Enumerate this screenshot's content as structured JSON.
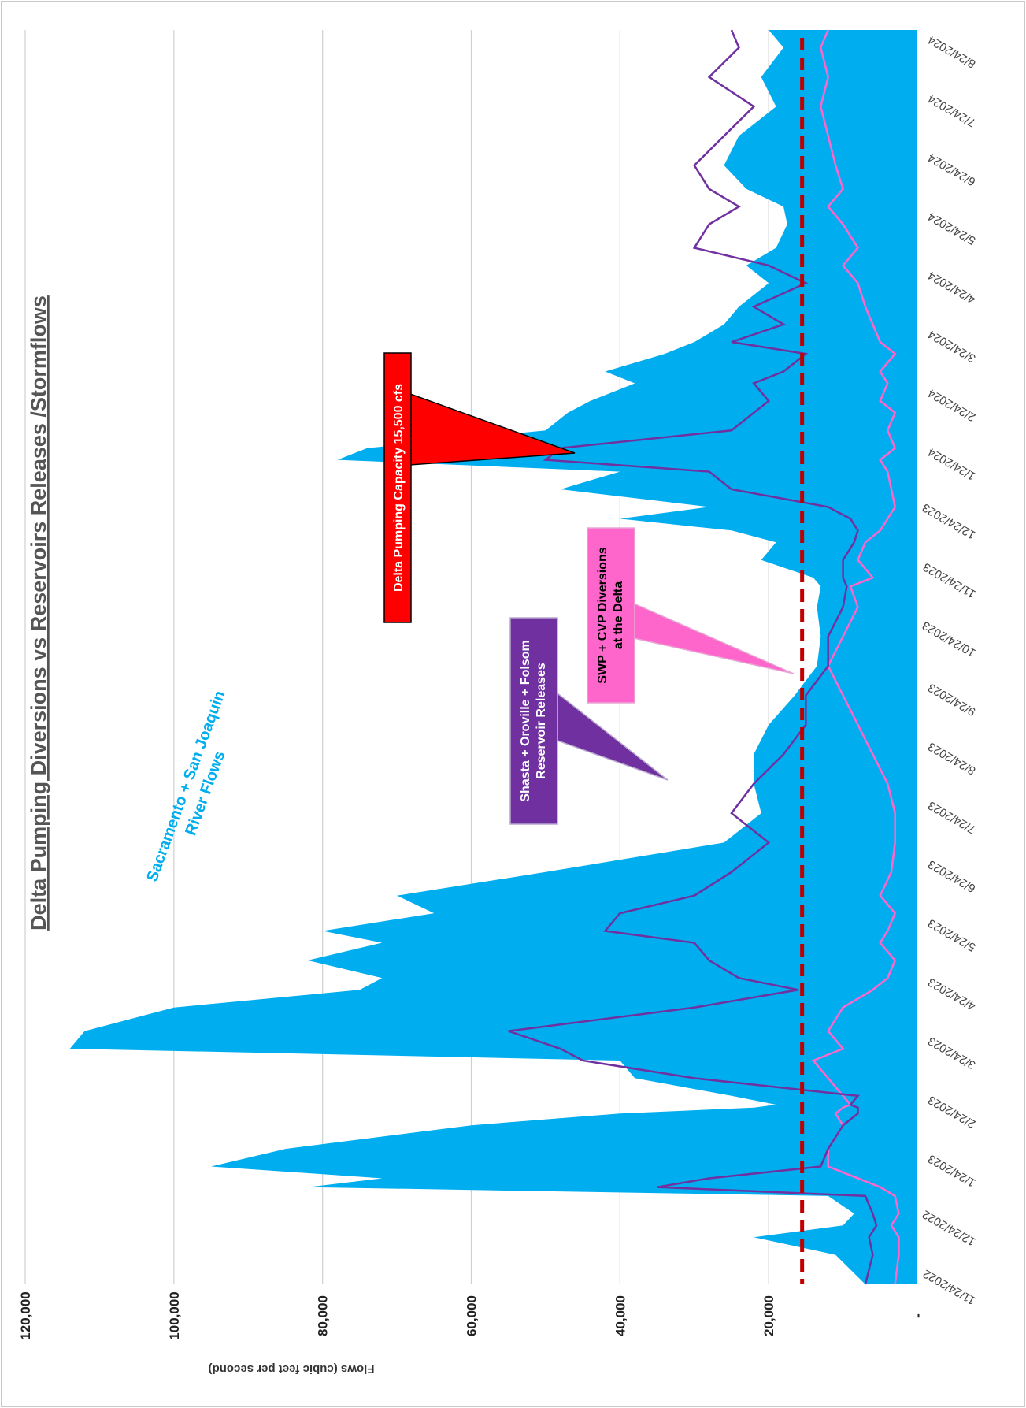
{
  "chart_data": {
    "type": "area",
    "orientation": "rotated 90 degrees clockwise",
    "title": "Delta Pumping Diversions vs Reservoirs Releases /Stormflows",
    "ylabel": "Flows (cubic feet per second)",
    "xlabel": "",
    "ylim": [
      0,
      120000
    ],
    "y_ticks": [
      "-",
      "20,000",
      "40,000",
      "60,000",
      "80,000",
      "100,000",
      "120,000"
    ],
    "x_ticks": [
      "11/24/2022",
      "12/24/2022",
      "1/24/2023",
      "2/24/2023",
      "3/24/2023",
      "4/24/2023",
      "5/24/2023",
      "6/24/2023",
      "7/24/2023",
      "8/24/2023",
      "9/24/2023",
      "10/24/2023",
      "11/24/2023",
      "12/24/2023",
      "1/24/2024",
      "2/24/2024",
      "3/24/2024",
      "4/24/2024",
      "5/24/2024",
      "6/24/2024",
      "7/24/2024",
      "8/24/2024"
    ],
    "grid": true,
    "x_months": [
      0,
      0.5,
      0.8,
      1.0,
      1.2,
      1.5,
      1.65,
      1.8,
      2.0,
      2.3,
      2.7,
      2.9,
      3.0,
      3.05,
      3.2,
      3.5,
      3.8,
      4.0,
      4.3,
      4.7,
      5.0,
      5.2,
      5.5,
      5.8,
      6.0,
      6.3,
      6.6,
      7.0,
      7.5,
      8.0,
      8.5,
      9.0,
      9.5,
      10.0,
      10.5,
      11.0,
      11.5,
      11.85,
      12.0,
      12.3,
      12.6,
      12.8,
      13.0,
      13.2,
      13.5,
      13.8,
      14.0,
      14.2,
      14.5,
      14.8,
      15.0,
      15.3,
      15.5,
      15.8,
      16.0,
      16.3,
      16.6,
      17.0,
      17.3,
      17.6,
      18.0,
      18.3,
      18.6,
      19.0,
      19.5,
      20.0,
      20.5,
      21.0,
      21.3
    ],
    "series": [
      {
        "name": "Sacramento + San Joaquin River Flows",
        "color": "#00aeef",
        "values": [
          7000,
          11000,
          22000,
          10000,
          8500,
          12000,
          82000,
          72000,
          95000,
          85000,
          60000,
          40000,
          22000,
          19000,
          25000,
          38000,
          40000,
          114000,
          112000,
          100000,
          75000,
          72000,
          82000,
          72000,
          80000,
          65000,
          70000,
          50000,
          26000,
          21000,
          22000,
          22000,
          20000,
          16500,
          13500,
          13000,
          13500,
          13000,
          14000,
          21000,
          19000,
          25000,
          40000,
          28000,
          48000,
          40000,
          78000,
          74000,
          50000,
          47000,
          44000,
          38000,
          42000,
          34000,
          30000,
          26000,
          24000,
          20000,
          23000,
          19000,
          17500,
          18000,
          23000,
          26000,
          24000,
          19000,
          21000,
          18000,
          20000
        ]
      },
      {
        "name": "Shasta + Oroville + Folsom Reservoir Releases",
        "color": "#7030a0",
        "values": [
          7000,
          6000,
          6500,
          5500,
          6000,
          7000,
          35000,
          28000,
          13000,
          12000,
          10000,
          8000,
          8000,
          9000,
          8000,
          30000,
          45000,
          48000,
          55000,
          30000,
          16000,
          24000,
          28000,
          30000,
          42000,
          40000,
          30000,
          25000,
          20000,
          25000,
          22000,
          18000,
          15000,
          15000,
          12000,
          12000,
          10000,
          9500,
          10000,
          10000,
          8500,
          8000,
          9000,
          12000,
          25000,
          28000,
          50000,
          48000,
          25000,
          22000,
          20000,
          22000,
          18000,
          15000,
          25000,
          18000,
          22000,
          15000,
          20000,
          30000,
          28000,
          24000,
          28000,
          30000,
          26000,
          22000,
          28000,
          24000,
          25000
        ]
      },
      {
        "name": "SWP + CVP Diversions at the Delta",
        "color": "#ff66cc",
        "values": [
          3000,
          2500,
          2500,
          3500,
          2500,
          3000,
          5000,
          8000,
          12000,
          12000,
          10000,
          11000,
          10000,
          9000,
          10000,
          12000,
          14000,
          10000,
          12000,
          10000,
          6000,
          4000,
          3000,
          5000,
          4000,
          3000,
          5000,
          3500,
          3000,
          3000,
          4000,
          6000,
          8000,
          10000,
          12000,
          10000,
          8000,
          9000,
          6000,
          8000,
          7000,
          5000,
          4000,
          3000,
          3500,
          4000,
          5000,
          3000,
          4000,
          3000,
          5000,
          4000,
          5000,
          3000,
          5000,
          6000,
          7000,
          8000,
          10000,
          8000,
          10000,
          12000,
          10000,
          11000,
          12000,
          13000,
          12000,
          13000,
          12000
        ]
      },
      {
        "name": "Delta Pumping Capacity 15,500 cfs",
        "color": "#c00000",
        "values": [
          15500
        ]
      }
    ],
    "annotations": [
      "Sacramento + San Joaquin River Flows",
      "Shasta + Oroville + Folsom Reservoir Releases",
      "SWP + CVP Diversions at the Delta",
      "Delta Pumping Capacity 15,500 cfs"
    ]
  },
  "callouts": {
    "river": [
      "Sacramento + San Joaquin",
      "River Flows"
    ],
    "reservoir": [
      "Shasta + Oroville + Folsom",
      "Reservoir Releases"
    ],
    "diversions": [
      "SWP + CVP Diversions",
      "at the Delta"
    ],
    "capacity": "Delta Pumping Capacity 15,500 cfs"
  },
  "colors": {
    "reservoir_box": "#7030a0",
    "diversions_box": "#ff66cc",
    "capacity_box": "#ff0000"
  }
}
